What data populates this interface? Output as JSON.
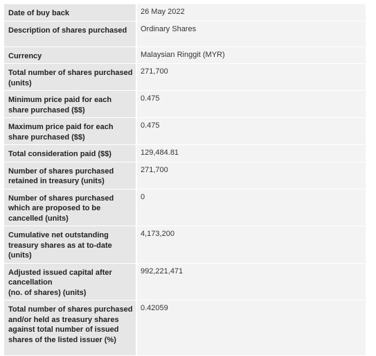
{
  "rows": [
    {
      "label": "Date of buy back",
      "value": "26 May 2022"
    },
    {
      "label": "Description of shares purchased",
      "value": "Ordinary Shares"
    },
    {
      "label": "Currency",
      "value": "Malaysian Ringgit (MYR)"
    },
    {
      "label": "Total number of shares purchased (units)",
      "value": "271,700"
    },
    {
      "label": "Minimum price paid for each share purchased ($$)",
      "value": "0.475"
    },
    {
      "label": "Maximum price paid for each share purchased ($$)",
      "value": "0.475"
    },
    {
      "label": "Total consideration paid ($$)",
      "value": "129,484.81"
    },
    {
      "label": "Number of shares purchased retained in treasury (units)",
      "value": "271,700"
    },
    {
      "label": "Number of shares purchased which are proposed to be cancelled (units)",
      "value": "0"
    },
    {
      "label": "Cumulative net outstanding treasury shares as at to-date (units)",
      "value": "4,173,200"
    },
    {
      "label": "Adjusted issued capital after cancellation\n(no. of shares) (units)",
      "value": "992,221,471"
    },
    {
      "label": "Total number of shares purchased and/or held as treasury shares against total number of issued shares of the listed issuer (%)",
      "value": "0.42059"
    }
  ]
}
